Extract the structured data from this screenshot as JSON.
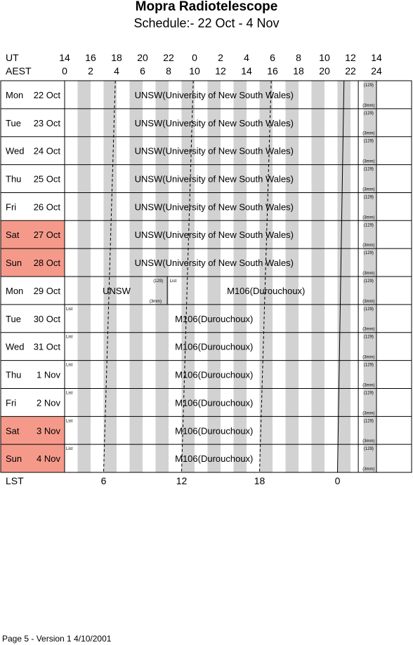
{
  "title": "Mopra Radiotelescope",
  "subtitle": "Schedule:- 22 Oct - 4  Nov",
  "ut_label": "UT",
  "aest_label": "AEST",
  "lst_label": "LST",
  "ut_ticks": [
    "14",
    "16",
    "18",
    "20",
    "22",
    "0",
    "2",
    "4",
    "6",
    "8",
    "10",
    "12",
    "14"
  ],
  "aest_ticks": [
    "0",
    "2",
    "4",
    "6",
    "8",
    "10",
    "12",
    "14",
    "16",
    "18",
    "20",
    "22",
    "24"
  ],
  "lst_ticks": [
    {
      "label": "6",
      "aest_hour": 3.0
    },
    {
      "label": "12",
      "aest_hour": 9.0
    },
    {
      "label": "18",
      "aest_hour": 15.0
    },
    {
      "label": "0",
      "aest_hour": 21.0
    }
  ],
  "lst_lines": [
    {
      "top": 3.9,
      "bottom": 3.0
    },
    {
      "top": 9.9,
      "bottom": 9.0
    },
    {
      "top": 15.9,
      "bottom": 15.0
    },
    {
      "top": 21.5,
      "bottom": 21.0
    }
  ],
  "small_labels": {
    "c129": "(129)",
    "mm3": "(3mm)",
    "list": "List"
  },
  "shade_color": "#d2d2d2",
  "weekend_color": "#f59a8a",
  "days": [
    {
      "dow": "Mon",
      "date": "22 Oct",
      "weekend": false,
      "type": "unsw"
    },
    {
      "dow": "Tue",
      "date": "23 Oct",
      "weekend": false,
      "type": "unsw"
    },
    {
      "dow": "Wed",
      "date": "24 Oct",
      "weekend": false,
      "type": "unsw"
    },
    {
      "dow": "Thu",
      "date": "25 Oct",
      "weekend": false,
      "type": "unsw"
    },
    {
      "dow": "Fri",
      "date": "26 Oct",
      "weekend": false,
      "type": "unsw"
    },
    {
      "dow": "Sat",
      "date": "27 Oct",
      "weekend": true,
      "type": "unsw"
    },
    {
      "dow": "Sun",
      "date": "28 Oct",
      "weekend": true,
      "type": "unsw"
    },
    {
      "dow": "Mon",
      "date": "29 Oct",
      "weekend": false,
      "type": "split"
    },
    {
      "dow": "Tue",
      "date": "30 Oct",
      "weekend": false,
      "type": "m106"
    },
    {
      "dow": "Wed",
      "date": "31 Oct",
      "weekend": false,
      "type": "m106"
    },
    {
      "dow": "Thu",
      "date": "1 Nov",
      "weekend": false,
      "type": "m106"
    },
    {
      "dow": "Fri",
      "date": "2 Nov",
      "weekend": false,
      "type": "m106"
    },
    {
      "dow": "Sat",
      "date": "3 Nov",
      "weekend": true,
      "type": "m106"
    },
    {
      "dow": "Sun",
      "date": "4 Nov",
      "weekend": true,
      "type": "m106"
    }
  ],
  "projects": {
    "unsw_full": "UNSW(University of New South Wales)",
    "unsw_short": "UNSW",
    "m106": "M106(Durouchoux)"
  },
  "footer": "Page 5 - Version 1  4/10/2001"
}
